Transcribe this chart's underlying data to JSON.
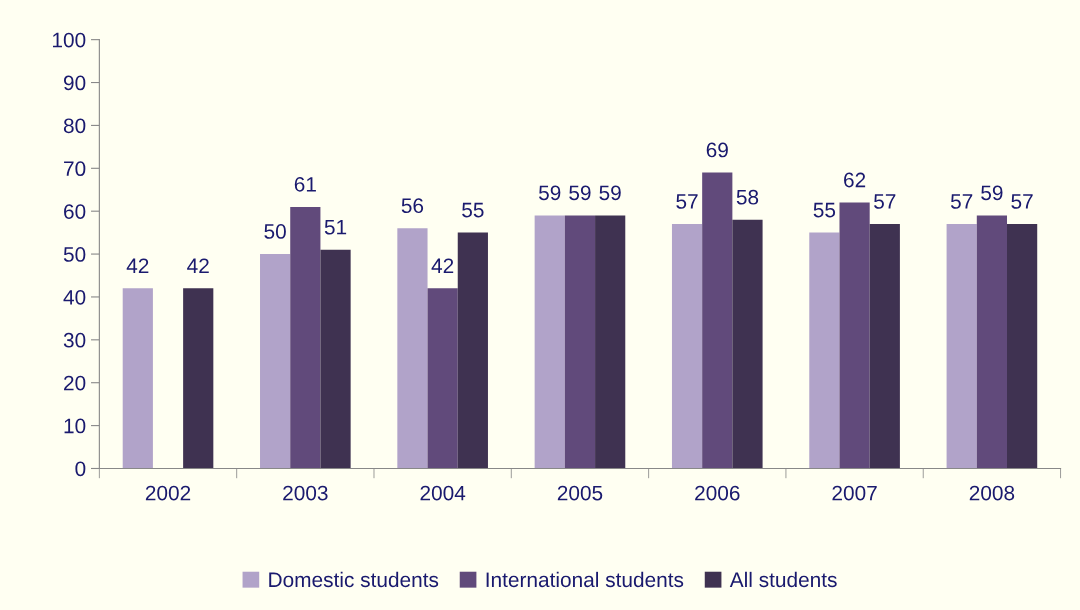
{
  "chart_data": {
    "type": "bar",
    "categories": [
      "2002",
      "2003",
      "2004",
      "2005",
      "2006",
      "2007",
      "2008"
    ],
    "series": [
      {
        "name": "Domestic students",
        "color": "#b1a3c9",
        "values": [
          42,
          50,
          56,
          59,
          57,
          55,
          57
        ]
      },
      {
        "name": "International students",
        "color": "#614a7b",
        "values": [
          null,
          61,
          42,
          59,
          69,
          62,
          59
        ]
      },
      {
        "name": "All students",
        "color": "#3f3251",
        "values": [
          42,
          51,
          55,
          59,
          58,
          57,
          57
        ]
      }
    ],
    "ylim": [
      0,
      100
    ],
    "yticks": [
      0,
      10,
      20,
      30,
      40,
      50,
      60,
      70,
      80,
      90,
      100
    ],
    "data_labels": true,
    "legend": "bottom",
    "grid": false
  }
}
